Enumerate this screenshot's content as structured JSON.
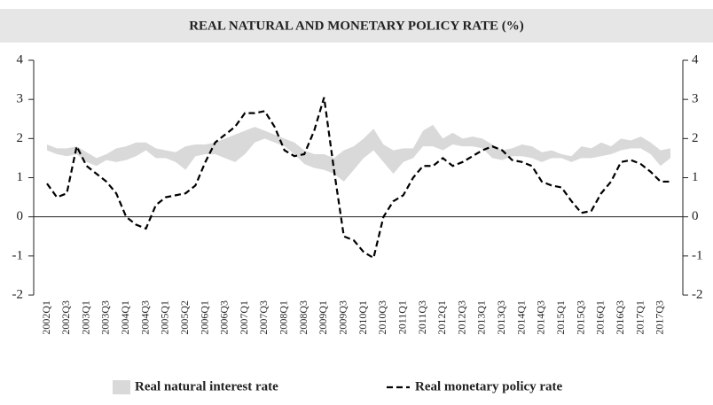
{
  "chart_data": {
    "type": "band-line",
    "title": "REAL NATURAL AND MONETARY POLICY RATE (%)",
    "categories": [
      "2002Q1",
      null,
      "2002Q3",
      null,
      "2003Q1",
      null,
      "2003Q3",
      null,
      "2004Q1",
      null,
      "2004Q3",
      null,
      "2005Q1",
      null,
      "2005Q2",
      null,
      "2006Q1",
      null,
      "2006Q3",
      null,
      "2007Q1",
      null,
      "2007Q3",
      null,
      "2008Q1",
      null,
      "2008Q3",
      null,
      "2009Q1",
      null,
      "2009Q3",
      null,
      "2010Q1",
      null,
      "2010Q3",
      null,
      "2011Q1",
      null,
      "2011Q3",
      null,
      "2012Q1",
      null,
      "2012Q3",
      null,
      "2013Q1",
      null,
      "2013Q3",
      null,
      "2014Q1",
      null,
      "2014Q3",
      null,
      "2015Q1",
      null,
      "2015Q3",
      null,
      "2016Q1",
      null,
      "2016Q3",
      null,
      "2017Q1",
      null,
      "2017Q3",
      null
    ],
    "series": [
      {
        "name": "Real natural interest rate",
        "color": "#d9d9d9",
        "style": "band",
        "low": [
          1.7,
          1.6,
          1.55,
          1.6,
          1.4,
          1.3,
          1.45,
          1.4,
          1.45,
          1.55,
          1.7,
          1.5,
          1.5,
          1.4,
          1.2,
          1.55,
          1.6,
          1.6,
          1.5,
          1.4,
          1.6,
          1.9,
          2.0,
          1.9,
          1.8,
          1.6,
          1.35,
          1.25,
          1.2,
          1.1,
          0.9,
          1.2,
          1.5,
          1.7,
          1.4,
          1.1,
          1.4,
          1.5,
          1.8,
          1.8,
          1.7,
          1.85,
          1.8,
          1.8,
          1.75,
          1.5,
          1.45,
          1.55,
          1.55,
          1.5,
          1.4,
          1.5,
          1.5,
          1.4,
          1.5,
          1.5,
          1.55,
          1.6,
          1.7,
          1.75,
          1.75,
          1.6,
          1.3,
          1.5
        ],
        "high": [
          1.85,
          1.75,
          1.75,
          1.8,
          1.65,
          1.5,
          1.6,
          1.75,
          1.8,
          1.9,
          1.9,
          1.75,
          1.7,
          1.65,
          1.8,
          1.85,
          1.85,
          1.9,
          2.0,
          2.1,
          2.2,
          2.3,
          2.2,
          2.1,
          2.0,
          1.9,
          1.7,
          1.6,
          1.6,
          1.5,
          1.7,
          1.8,
          2.0,
          2.25,
          1.85,
          1.7,
          1.75,
          1.75,
          2.2,
          2.35,
          2.0,
          2.15,
          2.0,
          2.05,
          2.0,
          1.85,
          1.7,
          1.75,
          1.85,
          1.8,
          1.65,
          1.7,
          1.6,
          1.55,
          1.8,
          1.75,
          1.9,
          1.8,
          2.0,
          1.95,
          2.05,
          1.9,
          1.7,
          1.75
        ]
      },
      {
        "name": "Real monetary policy rate",
        "color": "#000000",
        "style": "dashed",
        "values": [
          0.85,
          0.5,
          0.6,
          1.8,
          1.3,
          1.1,
          0.9,
          0.6,
          0.0,
          -0.2,
          -0.3,
          0.3,
          0.5,
          0.55,
          0.6,
          0.8,
          1.4,
          1.9,
          2.1,
          2.3,
          2.65,
          2.65,
          2.7,
          2.3,
          1.7,
          1.55,
          1.6,
          2.2,
          3.05,
          1.2,
          -0.5,
          -0.6,
          -0.9,
          -1.05,
          0.0,
          0.4,
          0.55,
          1.0,
          1.3,
          1.3,
          1.5,
          1.3,
          1.4,
          1.55,
          1.7,
          1.8,
          1.7,
          1.45,
          1.4,
          1.3,
          0.9,
          0.8,
          0.75,
          0.4,
          0.1,
          0.15,
          0.6,
          0.9,
          1.4,
          1.45,
          1.35,
          1.15,
          0.9,
          0.9
        ]
      }
    ],
    "ylim": [
      -2,
      4
    ],
    "yticks": [
      -2,
      -1,
      0,
      1,
      2,
      3,
      4
    ],
    "y2lim": [
      -2,
      4
    ],
    "y2ticks": [
      -2,
      -1,
      0,
      1,
      2,
      3,
      4
    ],
    "legend": "bottom"
  }
}
